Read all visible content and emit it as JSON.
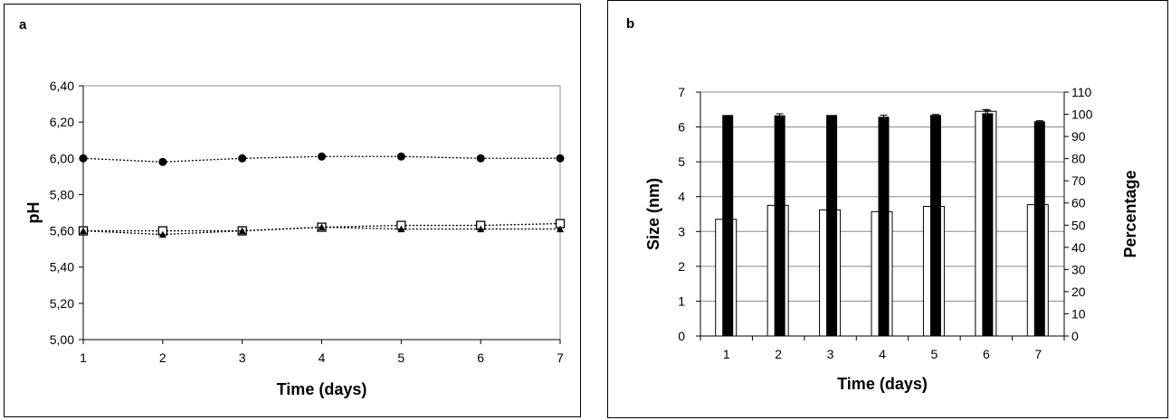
{
  "chart_data": [
    {
      "panel": "a",
      "type": "line",
      "xlabel": "Time (days)",
      "ylabel": "pH",
      "ylim": [
        5.0,
        6.4
      ],
      "xlim": [
        1,
        7
      ],
      "x": [
        1,
        2,
        3,
        4,
        5,
        6,
        7
      ],
      "ytick_labels": [
        "5,00",
        "5,20",
        "5,40",
        "5,60",
        "5,80",
        "6,00",
        "6,20",
        "6,40"
      ],
      "ytick_values": [
        5.0,
        5.2,
        5.4,
        5.6,
        5.8,
        6.0,
        6.2,
        6.4
      ],
      "xtick_labels": [
        "1",
        "2",
        "3",
        "4",
        "5",
        "6",
        "7"
      ],
      "grid": false,
      "legend": "none",
      "series": [
        {
          "marker": "filled-circle",
          "line": "dotted",
          "values": [
            6.0,
            5.98,
            6.0,
            6.01,
            6.01,
            6.0,
            6.0
          ]
        },
        {
          "marker": "open-square",
          "line": "dotted",
          "values": [
            5.6,
            5.6,
            5.6,
            5.62,
            5.63,
            5.63,
            5.64
          ]
        },
        {
          "marker": "filled-triangle",
          "line": "dotted",
          "values": [
            5.6,
            5.58,
            5.6,
            5.62,
            5.61,
            5.61,
            5.61
          ]
        }
      ]
    },
    {
      "panel": "b",
      "type": "bar",
      "xlabel": "Time (days)",
      "ylabel_left": "Size (nm)",
      "ylabel_right": "Percentage",
      "categories": [
        "1",
        "2",
        "3",
        "4",
        "5",
        "6",
        "7"
      ],
      "ylim_left": [
        0,
        7
      ],
      "ylim_right": [
        0,
        110
      ],
      "ytick_left": [
        "0",
        "1",
        "2",
        "3",
        "4",
        "5",
        "6",
        "7"
      ],
      "ytick_right": [
        "0",
        "10",
        "20",
        "30",
        "40",
        "50",
        "60",
        "70",
        "80",
        "90",
        "100",
        "110"
      ],
      "grid": true,
      "legend": "none",
      "series": [
        {
          "axis": "left",
          "fill": "open",
          "values": [
            3.35,
            3.75,
            3.62,
            3.57,
            3.72,
            6.45,
            3.77
          ],
          "errors": [
            0,
            0,
            0,
            0,
            0,
            0.05,
            0
          ]
        },
        {
          "axis": "left",
          "fill": "black",
          "values": [
            6.33,
            6.32,
            6.33,
            6.28,
            6.33,
            6.38,
            6.15
          ],
          "errors": [
            0,
            0.06,
            0,
            0.06,
            0.03,
            0.1,
            0.03
          ]
        }
      ]
    }
  ],
  "colors": {
    "ink": "#000000",
    "grid": "#888888",
    "background": "#ffffff",
    "open_fill": "#ffffff"
  },
  "labels": {
    "panel_a": "a",
    "panel_b": "b"
  }
}
